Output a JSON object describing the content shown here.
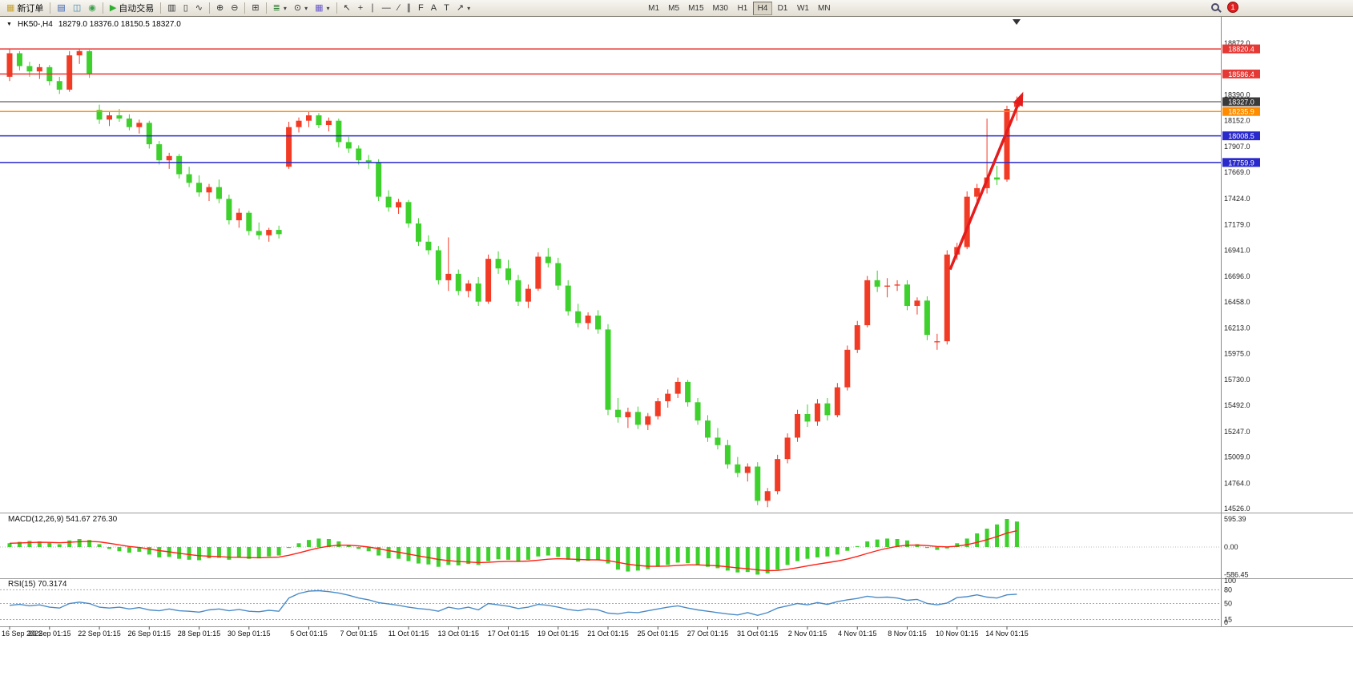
{
  "icons": {
    "title_collapse": "▼",
    "dropdown": "▾"
  },
  "toolbar": {
    "groups": [
      {
        "items": [
          {
            "name": "new-order-button",
            "icon": "new-order-icon",
            "glyph": "▦",
            "color": "#c8a32e",
            "label": "新订单"
          }
        ]
      },
      {
        "items": [
          {
            "name": "market-watch-button",
            "icon": "market-watch-icon",
            "glyph": "▤",
            "color": "#3a62b8"
          },
          {
            "name": "data-window-button",
            "icon": "data-window-icon",
            "glyph": "◫",
            "color": "#3a8ab8"
          },
          {
            "name": "navigator-button",
            "icon": "navigator-icon",
            "glyph": "◉",
            "color": "#3aa04a"
          }
        ]
      },
      {
        "items": [
          {
            "name": "auto-trading-button",
            "icon": "play-icon",
            "glyph": "▶",
            "color": "#2fae2f",
            "label": "自动交易"
          }
        ]
      },
      {
        "items": [
          {
            "name": "bar-chart-button",
            "icon": "bar-chart-icon",
            "glyph": "▥",
            "color": "#333333"
          },
          {
            "name": "candlestick-chart-button",
            "icon": "candlestick-chart-icon",
            "glyph": "▯",
            "color": "#333333"
          },
          {
            "name": "line-chart-button",
            "icon": "line-chart-icon",
            "glyph": "∿",
            "color": "#333333"
          }
        ]
      },
      {
        "items": [
          {
            "name": "zoom-in-button",
            "icon": "zoom-in-icon",
            "glyph": "⊕",
            "color": "#333333"
          },
          {
            "name": "zoom-out-button",
            "icon": "zoom-out-icon",
            "glyph": "⊖",
            "color": "#333333"
          }
        ]
      },
      {
        "items": [
          {
            "name": "tile-windows-button",
            "icon": "tile-windows-icon",
            "glyph": "⊞",
            "color": "#333333"
          }
        ]
      },
      {
        "items": [
          {
            "name": "indicators-button",
            "icon": "indicators-icon",
            "glyph": "≣",
            "color": "#2e7d32",
            "dropdown": true
          },
          {
            "name": "periods-button",
            "icon": "clock-icon",
            "glyph": "⊙",
            "color": "#333333",
            "dropdown": true
          },
          {
            "name": "templates-button",
            "icon": "template-icon",
            "glyph": "▦",
            "color": "#6a5acd",
            "dropdown": true
          }
        ]
      },
      {
        "items": [
          {
            "name": "cursor-button",
            "icon": "cursor-icon",
            "glyph": "↖",
            "color": "#333333"
          },
          {
            "name": "crosshair-button",
            "icon": "crosshair-icon",
            "glyph": "+",
            "color": "#333333"
          },
          {
            "name": "vertical-line-button",
            "icon": "vertical-line-icon",
            "glyph": "∣",
            "color": "#333333"
          },
          {
            "name": "horizontal-line-button",
            "icon": "horizontal-line-icon",
            "glyph": "―",
            "color": "#333333"
          },
          {
            "name": "trendline-button",
            "icon": "trendline-icon",
            "glyph": "∕",
            "color": "#333333"
          },
          {
            "name": "channel-button",
            "icon": "channel-icon",
            "glyph": "∥",
            "color": "#333333"
          },
          {
            "name": "fibonacci-button",
            "icon": "fibonacci-icon",
            "glyph": "F",
            "color": "#333333"
          },
          {
            "name": "text-button",
            "icon": "text-icon",
            "glyph": "A",
            "color": "#333333"
          },
          {
            "name": "label-button",
            "icon": "label-icon",
            "glyph": "T",
            "color": "#333333"
          },
          {
            "name": "arrows-button",
            "icon": "arrow-icon",
            "glyph": "↗",
            "color": "#333333",
            "dropdown": true
          }
        ]
      }
    ],
    "timeframes": [
      "M1",
      "M5",
      "M15",
      "M30",
      "H1",
      "H4",
      "D1",
      "W1",
      "MN"
    ],
    "active_timeframe": "H4",
    "notification_count": "1"
  },
  "chart": {
    "title": "HK50-,H4",
    "ohlc_text": "18279.0 18376.0 18150.5 18327.0"
  },
  "chart_data": {
    "type": "candlestick",
    "symbol": "HK50-",
    "timeframe": "H4",
    "current_bar": {
      "open": "18279.0",
      "high": "18376.0",
      "low": "18150.5",
      "close": "18327.0"
    },
    "colors": {
      "up": "#f23b25",
      "down": "#3ed02c",
      "macd_hist": "#3ed02c",
      "macd_signal": "#ff2015",
      "rsi": "#4a8bc8",
      "arrow": "#e41c1c"
    },
    "price_ticks": [
      "18872.0",
      "18390.0",
      "18152.0",
      "17907.0",
      "17669.0",
      "17424.0",
      "17179.0",
      "16941.0",
      "16696.0",
      "16458.0",
      "16213.0",
      "15975.0",
      "15730.0",
      "15492.0",
      "15247.0",
      "15009.0",
      "14764.0",
      "14526.0"
    ],
    "hlines": [
      {
        "value": 18820.4,
        "label": "18820.4",
        "color": "#e53935",
        "width": 1.5,
        "name": "resistance-line-18820"
      },
      {
        "value": 18586.4,
        "label": "18586.4",
        "color": "#e53935",
        "width": 1.5,
        "name": "resistance-line-18586"
      },
      {
        "value": 18327.0,
        "label": "18327.0",
        "color": "#3a3a3a",
        "width": 1,
        "name": "current-price-line"
      },
      {
        "value": 18235.9,
        "label": "18235.9",
        "color": "#ff8c00",
        "width": 1.5,
        "name": "orange-level-line-18235"
      },
      {
        "value": 18008.5,
        "label": "18008.5",
        "color": "#2929cc",
        "width": 1.5,
        "name": "support-line-18008"
      },
      {
        "value": 17759.9,
        "label": "17759.9",
        "color": "#2929cc",
        "width": 1.5,
        "name": "support-line-17759"
      }
    ],
    "candles": [
      [
        18560,
        18825,
        18520,
        18780
      ],
      [
        18780,
        18800,
        18620,
        18660
      ],
      [
        18660,
        18700,
        18560,
        18610
      ],
      [
        18610,
        18680,
        18540,
        18650
      ],
      [
        18650,
        18670,
        18480,
        18520
      ],
      [
        18520,
        18560,
        18400,
        18440
      ],
      [
        18440,
        18800,
        18420,
        18760
      ],
      [
        18760,
        18820,
        18680,
        18800
      ],
      [
        18800,
        18810,
        18550,
        18590
      ],
      [
        18250,
        18300,
        18120,
        18160
      ],
      [
        18160,
        18230,
        18100,
        18200
      ],
      [
        18200,
        18260,
        18140,
        18170
      ],
      [
        18170,
        18210,
        18060,
        18090
      ],
      [
        18090,
        18160,
        18030,
        18130
      ],
      [
        18130,
        18150,
        17890,
        17930
      ],
      [
        17930,
        17960,
        17740,
        17780
      ],
      [
        17780,
        17850,
        17700,
        17820
      ],
      [
        17820,
        17840,
        17610,
        17650
      ],
      [
        17650,
        17720,
        17530,
        17570
      ],
      [
        17570,
        17640,
        17440,
        17480
      ],
      [
        17480,
        17560,
        17400,
        17530
      ],
      [
        17530,
        17600,
        17380,
        17420
      ],
      [
        17420,
        17460,
        17180,
        17220
      ],
      [
        17220,
        17330,
        17150,
        17290
      ],
      [
        17290,
        17310,
        17080,
        17120
      ],
      [
        17120,
        17200,
        17040,
        17080
      ],
      [
        17080,
        17150,
        17020,
        17130
      ],
      [
        17130,
        17170,
        17050,
        17090
      ],
      [
        17720,
        18140,
        17700,
        18090
      ],
      [
        18090,
        18180,
        18040,
        18150
      ],
      [
        18150,
        18230,
        18090,
        18200
      ],
      [
        18200,
        18220,
        18080,
        18110
      ],
      [
        18110,
        18180,
        18050,
        18150
      ],
      [
        18150,
        18170,
        17900,
        17950
      ],
      [
        17950,
        18000,
        17850,
        17890
      ],
      [
        17890,
        17920,
        17740,
        17780
      ],
      [
        17780,
        17830,
        17700,
        17760
      ],
      [
        17760,
        17790,
        17400,
        17440
      ],
      [
        17440,
        17500,
        17300,
        17340
      ],
      [
        17340,
        17420,
        17280,
        17390
      ],
      [
        17390,
        17410,
        17150,
        17190
      ],
      [
        17190,
        17240,
        16980,
        17020
      ],
      [
        17020,
        17080,
        16900,
        16940
      ],
      [
        16940,
        16980,
        16620,
        16660
      ],
      [
        16660,
        17060,
        16560,
        16720
      ],
      [
        16720,
        16760,
        16520,
        16560
      ],
      [
        16560,
        16660,
        16500,
        16630
      ],
      [
        16630,
        16690,
        16420,
        16460
      ],
      [
        16460,
        16900,
        16440,
        16860
      ],
      [
        16860,
        16930,
        16720,
        16770
      ],
      [
        16770,
        16850,
        16620,
        16660
      ],
      [
        16660,
        16710,
        16420,
        16460
      ],
      [
        16460,
        16620,
        16400,
        16580
      ],
      [
        16580,
        16920,
        16560,
        16880
      ],
      [
        16880,
        16960,
        16780,
        16820
      ],
      [
        16820,
        16870,
        16570,
        16610
      ],
      [
        16610,
        16660,
        16330,
        16370
      ],
      [
        16370,
        16440,
        16220,
        16260
      ],
      [
        16260,
        16360,
        16200,
        16330
      ],
      [
        16330,
        16380,
        16160,
        16200
      ],
      [
        16200,
        16250,
        15400,
        15450
      ],
      [
        15450,
        15560,
        15330,
        15380
      ],
      [
        15380,
        15470,
        15280,
        15430
      ],
      [
        15430,
        15480,
        15270,
        15310
      ],
      [
        15310,
        15420,
        15260,
        15390
      ],
      [
        15390,
        15560,
        15360,
        15530
      ],
      [
        15530,
        15640,
        15470,
        15600
      ],
      [
        15600,
        15750,
        15560,
        15710
      ],
      [
        15710,
        15730,
        15480,
        15520
      ],
      [
        15520,
        15560,
        15310,
        15350
      ],
      [
        15350,
        15400,
        15150,
        15190
      ],
      [
        15190,
        15280,
        15080,
        15120
      ],
      [
        15120,
        15170,
        14900,
        14940
      ],
      [
        14940,
        15010,
        14820,
        14860
      ],
      [
        14860,
        14950,
        14780,
        14920
      ],
      [
        14920,
        14960,
        14560,
        14600
      ],
      [
        14600,
        14720,
        14540,
        14690
      ],
      [
        14690,
        15030,
        14660,
        14990
      ],
      [
        14990,
        15230,
        14950,
        15190
      ],
      [
        15190,
        15450,
        15150,
        15410
      ],
      [
        15410,
        15500,
        15290,
        15340
      ],
      [
        15340,
        15550,
        15300,
        15510
      ],
      [
        15510,
        15560,
        15350,
        15400
      ],
      [
        15400,
        15700,
        15380,
        15660
      ],
      [
        15660,
        16050,
        15630,
        16010
      ],
      [
        16010,
        16280,
        15980,
        16240
      ],
      [
        16240,
        16700,
        16220,
        16660
      ],
      [
        16660,
        16750,
        16550,
        16600
      ],
      [
        16600,
        16680,
        16500,
        16610
      ],
      [
        16610,
        16660,
        16560,
        16620
      ],
      [
        16620,
        16660,
        16380,
        16420
      ],
      [
        16420,
        16500,
        16340,
        16470
      ],
      [
        16470,
        16510,
        16100,
        16150
      ],
      [
        16080,
        16160,
        16010,
        16090
      ],
      [
        16090,
        16940,
        16060,
        16900
      ],
      [
        16900,
        17010,
        16850,
        16970
      ],
      [
        16970,
        17490,
        16950,
        17440
      ],
      [
        17440,
        17560,
        17380,
        17520
      ],
      [
        17520,
        18170,
        17470,
        17620
      ],
      [
        17620,
        17730,
        17550,
        17600
      ],
      [
        17600,
        18290,
        17580,
        18260
      ],
      [
        18279,
        18376,
        18150.5,
        18327
      ]
    ],
    "x_labels": [
      {
        "i": 0,
        "t": "16 Sep 2022"
      },
      {
        "i": 4,
        "t": "20 Sep 01:15"
      },
      {
        "i": 9,
        "t": "22 Sep 01:15"
      },
      {
        "i": 14,
        "t": "26 Sep 01:15"
      },
      {
        "i": 19,
        "t": "28 Sep 01:15"
      },
      {
        "i": 24,
        "t": "30 Sep 01:15"
      },
      {
        "i": 30,
        "t": "5 Oct 01:15"
      },
      {
        "i": 35,
        "t": "7 Oct 01:15"
      },
      {
        "i": 40,
        "t": "11 Oct 01:15"
      },
      {
        "i": 45,
        "t": "13 Oct 01:15"
      },
      {
        "i": 50,
        "t": "17 Oct 01:15"
      },
      {
        "i": 55,
        "t": "19 Oct 01:15"
      },
      {
        "i": 60,
        "t": "21 Oct 01:15"
      },
      {
        "i": 65,
        "t": "25 Oct 01:15"
      },
      {
        "i": 70,
        "t": "27 Oct 01:15"
      },
      {
        "i": 75,
        "t": "31 Oct 01:15"
      },
      {
        "i": 80,
        "t": "2 Nov 01:15"
      },
      {
        "i": 85,
        "t": "4 Nov 01:15"
      },
      {
        "i": 90,
        "t": "8 Nov 01:15"
      },
      {
        "i": 95,
        "t": "10 Nov 01:15"
      },
      {
        "i": 100,
        "t": "14 Nov 01:15"
      }
    ],
    "macd": {
      "label_text": "MACD(12,26,9) 541.67 276.30",
      "axis": [
        "595.39",
        "0.00",
        "-586.45"
      ],
      "values": [
        80,
        110,
        130,
        120,
        90,
        60,
        140,
        170,
        150,
        60,
        -40,
        -90,
        -120,
        -100,
        -160,
        -220,
        -210,
        -250,
        -270,
        -280,
        -240,
        -230,
        -270,
        -230,
        -250,
        -240,
        -200,
        -180,
        -20,
        80,
        150,
        180,
        170,
        120,
        40,
        -40,
        -90,
        -180,
        -240,
        -250,
        -300,
        -350,
        -370,
        -420,
        -380,
        -390,
        -360,
        -380,
        -300,
        -260,
        -270,
        -310,
        -270,
        -200,
        -180,
        -210,
        -270,
        -310,
        -290,
        -280,
        -350,
        -480,
        -520,
        -500,
        -470,
        -420,
        -380,
        -330,
        -340,
        -380,
        -420,
        -450,
        -500,
        -540,
        -530,
        -586,
        -560,
        -480,
        -380,
        -300,
        -250,
        -220,
        -200,
        -160,
        -80,
        20,
        120,
        160,
        180,
        170,
        140,
        60,
        -20,
        -60,
        -30,
        80,
        180,
        290,
        390,
        480,
        595,
        541.67
      ]
    },
    "rsi": {
      "label_text": "RSI(15) 70.3174",
      "axis": [
        "100",
        "80",
        "50",
        "15",
        "0"
      ],
      "levels": [
        80,
        50,
        15
      ],
      "values": [
        46,
        48,
        45,
        47,
        42,
        40,
        50,
        53,
        50,
        42,
        40,
        42,
        38,
        41,
        36,
        34,
        38,
        34,
        33,
        31,
        36,
        38,
        34,
        37,
        33,
        32,
        35,
        33,
        62,
        72,
        77,
        78,
        76,
        73,
        68,
        62,
        58,
        52,
        49,
        46,
        42,
        39,
        37,
        33,
        42,
        38,
        42,
        36,
        50,
        47,
        44,
        39,
        42,
        48,
        46,
        42,
        37,
        34,
        38,
        36,
        29,
        27,
        31,
        30,
        34,
        38,
        42,
        45,
        40,
        36,
        33,
        30,
        27,
        25,
        30,
        24,
        30,
        40,
        45,
        50,
        47,
        52,
        48,
        54,
        58,
        61,
        66,
        63,
        64,
        62,
        57,
        59,
        50,
        47,
        51,
        63,
        65,
        69,
        64,
        62,
        69,
        70.3
      ]
    },
    "arrow": {
      "from": {
        "index": 94.3,
        "price": 16760
      },
      "to": {
        "index": 101.5,
        "price": 18390
      },
      "color": "#e41c1c"
    }
  }
}
